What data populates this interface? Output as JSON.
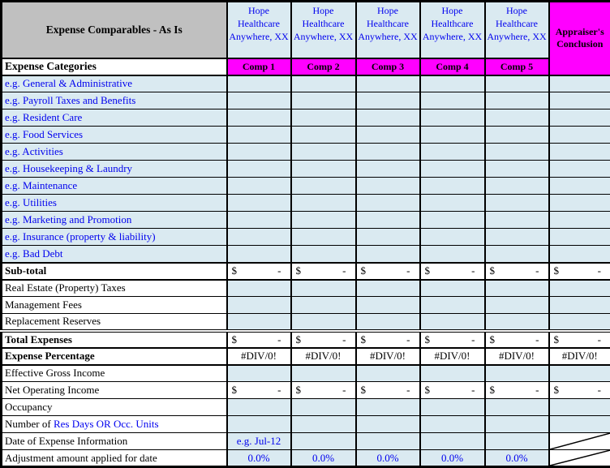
{
  "header": {
    "title": "Expense Comparables - As Is",
    "categories_label": "Expense Categories",
    "comp_column_title": "Hope Healthcare Anywhere, XX",
    "comp_labels": [
      "Comp 1",
      "Comp 2",
      "Comp 3",
      "Comp 4",
      "Comp 5"
    ],
    "appraiser_label": "Appraiser's Conclusion"
  },
  "colors": {
    "title_gray": "#C0C0C0",
    "magenta": "#FF00FF",
    "light_blue": "#DAEAF1",
    "blue_text": "#0000EE",
    "grid_black": "#000000"
  },
  "rows": [
    {
      "name": "row-general-administrative",
      "label": "e.g. General & Administrative",
      "label_color": "blue",
      "bold": false,
      "bg": "blue",
      "cells": [
        {
          "type": "empty"
        },
        {
          "type": "empty"
        },
        {
          "type": "empty"
        },
        {
          "type": "empty"
        },
        {
          "type": "empty"
        },
        {
          "type": "empty"
        }
      ]
    },
    {
      "name": "row-payroll-taxes-benefits",
      "label": "e.g. Payroll Taxes and Benefits",
      "label_color": "blue",
      "bold": false,
      "bg": "blue",
      "cells": [
        {
          "type": "empty"
        },
        {
          "type": "empty"
        },
        {
          "type": "empty"
        },
        {
          "type": "empty"
        },
        {
          "type": "empty"
        },
        {
          "type": "empty"
        }
      ]
    },
    {
      "name": "row-resident-care",
      "label": "e.g. Resident Care",
      "label_color": "blue",
      "bold": false,
      "bg": "blue",
      "cells": [
        {
          "type": "empty"
        },
        {
          "type": "empty"
        },
        {
          "type": "empty"
        },
        {
          "type": "empty"
        },
        {
          "type": "empty"
        },
        {
          "type": "empty"
        }
      ]
    },
    {
      "name": "row-food-services",
      "label": "e.g. Food Services",
      "label_color": "blue",
      "bold": false,
      "bg": "blue",
      "cells": [
        {
          "type": "empty"
        },
        {
          "type": "empty"
        },
        {
          "type": "empty"
        },
        {
          "type": "empty"
        },
        {
          "type": "empty"
        },
        {
          "type": "empty"
        }
      ]
    },
    {
      "name": "row-activities",
      "label": "e.g. Activities",
      "label_color": "blue",
      "bold": false,
      "bg": "blue",
      "cells": [
        {
          "type": "empty"
        },
        {
          "type": "empty"
        },
        {
          "type": "empty"
        },
        {
          "type": "empty"
        },
        {
          "type": "empty"
        },
        {
          "type": "empty"
        }
      ]
    },
    {
      "name": "row-housekeeping-laundry",
      "label": "e.g. Housekeeping & Laundry",
      "label_color": "blue",
      "bold": false,
      "bg": "blue",
      "cells": [
        {
          "type": "empty"
        },
        {
          "type": "empty"
        },
        {
          "type": "empty"
        },
        {
          "type": "empty"
        },
        {
          "type": "empty"
        },
        {
          "type": "empty"
        }
      ]
    },
    {
      "name": "row-maintenance",
      "label": "e.g. Maintenance",
      "label_color": "blue",
      "bold": false,
      "bg": "blue",
      "cells": [
        {
          "type": "empty"
        },
        {
          "type": "empty"
        },
        {
          "type": "empty"
        },
        {
          "type": "empty"
        },
        {
          "type": "empty"
        },
        {
          "type": "empty"
        }
      ]
    },
    {
      "name": "row-utilities",
      "label": "e.g. Utilities",
      "label_color": "blue",
      "bold": false,
      "bg": "blue",
      "cells": [
        {
          "type": "empty"
        },
        {
          "type": "empty"
        },
        {
          "type": "empty"
        },
        {
          "type": "empty"
        },
        {
          "type": "empty"
        },
        {
          "type": "empty"
        }
      ]
    },
    {
      "name": "row-marketing-promotion",
      "label": "e.g. Marketing and Promotion",
      "label_color": "blue",
      "bold": false,
      "bg": "blue",
      "cells": [
        {
          "type": "empty"
        },
        {
          "type": "empty"
        },
        {
          "type": "empty"
        },
        {
          "type": "empty"
        },
        {
          "type": "empty"
        },
        {
          "type": "empty"
        }
      ]
    },
    {
      "name": "row-insurance",
      "label": "e.g. Insurance (property & liability)",
      "label_color": "blue",
      "bold": false,
      "bg": "blue",
      "cells": [
        {
          "type": "empty"
        },
        {
          "type": "empty"
        },
        {
          "type": "empty"
        },
        {
          "type": "empty"
        },
        {
          "type": "empty"
        },
        {
          "type": "empty"
        }
      ]
    },
    {
      "name": "row-bad-debt",
      "label": "e.g. Bad Debt",
      "label_color": "blue",
      "bold": false,
      "bg": "blue",
      "cells": [
        {
          "type": "empty"
        },
        {
          "type": "empty"
        },
        {
          "type": "empty"
        },
        {
          "type": "empty"
        },
        {
          "type": "empty"
        },
        {
          "type": "empty"
        }
      ]
    },
    {
      "name": "row-sub-total",
      "label": "Sub-total",
      "label_color": "black",
      "bold": true,
      "bg": "white",
      "border_top": "thick",
      "border_bottom": "thick",
      "cells": [
        {
          "type": "money",
          "currency": "$",
          "amount": "-"
        },
        {
          "type": "money",
          "currency": "$",
          "amount": "-"
        },
        {
          "type": "money",
          "currency": "$",
          "amount": "-"
        },
        {
          "type": "money",
          "currency": "$",
          "amount": "-"
        },
        {
          "type": "money",
          "currency": "$",
          "amount": "-"
        },
        {
          "type": "money",
          "currency": "$",
          "amount": "-"
        }
      ]
    },
    {
      "name": "row-real-estate-taxes",
      "label": "Real Estate (Property) Taxes",
      "label_color": "black",
      "bold": false,
      "bg": "white",
      "cells": [
        {
          "type": "empty",
          "bg": "blue"
        },
        {
          "type": "empty",
          "bg": "blue"
        },
        {
          "type": "empty",
          "bg": "blue"
        },
        {
          "type": "empty",
          "bg": "blue"
        },
        {
          "type": "empty",
          "bg": "blue"
        },
        {
          "type": "empty",
          "bg": "blue"
        }
      ]
    },
    {
      "name": "row-management-fees",
      "label": "Management Fees",
      "label_color": "black",
      "bold": false,
      "bg": "white",
      "cells": [
        {
          "type": "empty",
          "bg": "blue"
        },
        {
          "type": "empty",
          "bg": "blue"
        },
        {
          "type": "empty",
          "bg": "blue"
        },
        {
          "type": "empty",
          "bg": "blue"
        },
        {
          "type": "empty",
          "bg": "blue"
        },
        {
          "type": "empty",
          "bg": "blue"
        }
      ]
    },
    {
      "name": "row-replacement-reserves",
      "label": "Replacement Reserves",
      "label_color": "black",
      "bold": false,
      "bg": "white",
      "cells": [
        {
          "type": "empty",
          "bg": "blue"
        },
        {
          "type": "empty",
          "bg": "blue"
        },
        {
          "type": "empty",
          "bg": "blue"
        },
        {
          "type": "empty",
          "bg": "blue"
        },
        {
          "type": "empty",
          "bg": "blue"
        },
        {
          "type": "empty",
          "bg": "blue"
        }
      ]
    },
    {
      "name": "row-total-expenses",
      "label": "Total Expenses",
      "label_color": "black",
      "bold": true,
      "bg": "white",
      "border_top": "double",
      "border_bottom": "thick",
      "cells": [
        {
          "type": "money",
          "currency": "$",
          "amount": "-"
        },
        {
          "type": "money",
          "currency": "$",
          "amount": "-"
        },
        {
          "type": "money",
          "currency": "$",
          "amount": "-"
        },
        {
          "type": "money",
          "currency": "$",
          "amount": "-"
        },
        {
          "type": "money",
          "currency": "$",
          "amount": "-"
        },
        {
          "type": "money",
          "currency": "$",
          "amount": "-"
        }
      ]
    },
    {
      "name": "row-expense-percentage",
      "label": "Expense Percentage",
      "label_color": "black",
      "bold": true,
      "bg": "white",
      "border_bottom": "thick",
      "cells": [
        {
          "type": "value",
          "text": "#DIV/0!",
          "color": "black"
        },
        {
          "type": "value",
          "text": "#DIV/0!",
          "color": "black"
        },
        {
          "type": "value",
          "text": "#DIV/0!",
          "color": "black"
        },
        {
          "type": "value",
          "text": "#DIV/0!",
          "color": "black"
        },
        {
          "type": "value",
          "text": "#DIV/0!",
          "color": "black"
        },
        {
          "type": "value",
          "text": "#DIV/0!",
          "color": "black"
        }
      ]
    },
    {
      "name": "row-effective-gross-income",
      "label": "Effective Gross Income",
      "label_color": "black",
      "bold": false,
      "bg": "white",
      "cells": [
        {
          "type": "empty",
          "bg": "blue"
        },
        {
          "type": "empty",
          "bg": "blue"
        },
        {
          "type": "empty",
          "bg": "blue"
        },
        {
          "type": "empty",
          "bg": "blue"
        },
        {
          "type": "empty",
          "bg": "blue"
        },
        {
          "type": "empty",
          "bg": "blue"
        }
      ]
    },
    {
      "name": "row-net-operating-income",
      "label": "Net Operating Income",
      "label_color": "black",
      "bold": false,
      "bg": "white",
      "cells": [
        {
          "type": "money",
          "currency": "$",
          "amount": "-"
        },
        {
          "type": "money",
          "currency": "$",
          "amount": "-"
        },
        {
          "type": "money",
          "currency": "$",
          "amount": "-"
        },
        {
          "type": "money",
          "currency": "$",
          "amount": "-"
        },
        {
          "type": "money",
          "currency": "$",
          "amount": "-"
        },
        {
          "type": "money",
          "currency": "$",
          "amount": "-"
        }
      ]
    },
    {
      "name": "row-occupancy",
      "label": "Occupancy",
      "label_color": "black",
      "bold": false,
      "bg": "white",
      "cells": [
        {
          "type": "empty",
          "bg": "blue"
        },
        {
          "type": "empty",
          "bg": "blue"
        },
        {
          "type": "empty",
          "bg": "blue"
        },
        {
          "type": "empty",
          "bg": "blue"
        },
        {
          "type": "empty",
          "bg": "blue"
        },
        {
          "type": "empty",
          "bg": "blue"
        }
      ]
    },
    {
      "name": "row-number-res-days",
      "label": "Number of Res Days OR Occ. Units",
      "label_color": "black",
      "bold": false,
      "bg": "white",
      "label_parts": [
        {
          "text": "Number of ",
          "color": "black"
        },
        {
          "text": "Res Days OR Occ. Units",
          "color": "blue"
        }
      ],
      "cells": [
        {
          "type": "empty",
          "bg": "blue"
        },
        {
          "type": "empty",
          "bg": "blue"
        },
        {
          "type": "empty",
          "bg": "blue"
        },
        {
          "type": "empty",
          "bg": "blue"
        },
        {
          "type": "empty",
          "bg": "blue"
        },
        {
          "type": "empty",
          "bg": "blue"
        }
      ]
    },
    {
      "name": "row-date-expense-info",
      "label": "Date of Expense Information",
      "label_color": "black",
      "bold": false,
      "bg": "white",
      "cells": [
        {
          "type": "value",
          "text": "e.g. Jul-12",
          "color": "blue",
          "bg": "blue"
        },
        {
          "type": "empty",
          "bg": "blue"
        },
        {
          "type": "empty",
          "bg": "blue"
        },
        {
          "type": "empty",
          "bg": "blue"
        },
        {
          "type": "empty",
          "bg": "blue"
        },
        {
          "type": "diagonal"
        }
      ]
    },
    {
      "name": "row-adjustment-amount",
      "label": "Adjustment amount applied for date",
      "label_color": "black",
      "bold": false,
      "bg": "white",
      "cells": [
        {
          "type": "value",
          "text": "0.0%",
          "color": "blue",
          "bg": "blue"
        },
        {
          "type": "value",
          "text": "0.0%",
          "color": "blue",
          "bg": "blue"
        },
        {
          "type": "value",
          "text": "0.0%",
          "color": "blue",
          "bg": "blue"
        },
        {
          "type": "value",
          "text": "0.0%",
          "color": "blue",
          "bg": "blue"
        },
        {
          "type": "value",
          "text": "0.0%",
          "color": "blue",
          "bg": "blue"
        },
        {
          "type": "diagonal"
        }
      ]
    }
  ]
}
